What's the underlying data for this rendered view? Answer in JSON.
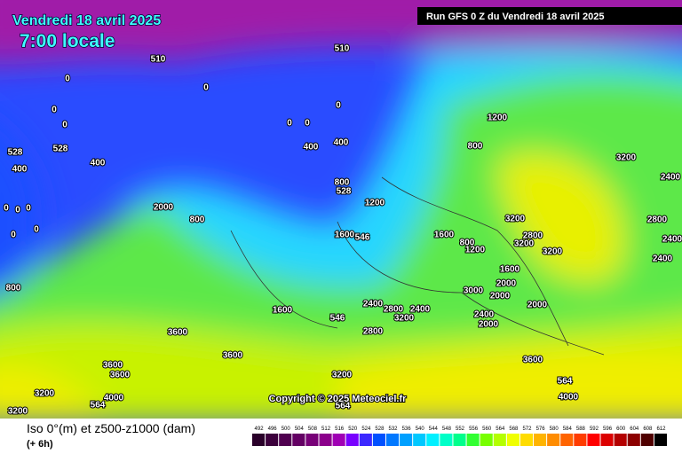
{
  "header": {
    "date": "Vendredi 18 avril 2025",
    "time": "7:00 locale",
    "run": "Run GFS 0 Z du Vendredi 18 avril 2025"
  },
  "map": {
    "copyright": "Copyright © 2025 Meteociel.fr",
    "contour_labels": [
      "510",
      "510",
      "0",
      "0",
      "0",
      "0",
      "0",
      "0",
      "0",
      "528",
      "528",
      "400",
      "400",
      "400",
      "400",
      "800",
      "528",
      "1200",
      "800",
      "3200",
      "2400",
      "2000",
      "800",
      "0",
      "0",
      "0",
      "0",
      "0",
      "1200",
      "1600",
      "546",
      "1600",
      "800",
      "1200",
      "3200",
      "2800",
      "2400",
      "2800",
      "3200",
      "3200",
      "2400",
      "1600",
      "2000",
      "3000",
      "2000",
      "2000",
      "800",
      "1600",
      "546",
      "2400",
      "2800",
      "2400",
      "3200",
      "2400",
      "2000",
      "2800",
      "3600",
      "3600",
      "3600",
      "3600",
      "3600",
      "3200",
      "564",
      "3200",
      "4000",
      "564",
      "3200",
      "564",
      "4000"
    ]
  },
  "footer": {
    "title": "Iso 0°(m) et z500-z1000 (dam)",
    "subtitle": "(+ 6h)"
  },
  "legend": {
    "values": [
      492,
      496,
      500,
      504,
      508,
      512,
      516,
      520,
      524,
      528,
      532,
      536,
      540,
      544,
      548,
      552,
      556,
      560,
      564,
      568,
      572,
      576,
      580,
      584,
      588,
      592,
      596,
      600,
      604,
      608,
      612
    ],
    "colors": [
      "#2a002a",
      "#3c003c",
      "#500050",
      "#640064",
      "#780078",
      "#8c008c",
      "#a000b4",
      "#7800ff",
      "#3c28ff",
      "#0050ff",
      "#0078ff",
      "#00a0ff",
      "#00c8ff",
      "#00f0ff",
      "#00ffc8",
      "#00ff8c",
      "#32ff32",
      "#78ff00",
      "#b4ff00",
      "#f0ff00",
      "#ffdc00",
      "#ffb400",
      "#ff8c00",
      "#ff6400",
      "#ff3c00",
      "#ff0000",
      "#dc0000",
      "#b40000",
      "#8c0000",
      "#500000",
      "#000000"
    ]
  }
}
